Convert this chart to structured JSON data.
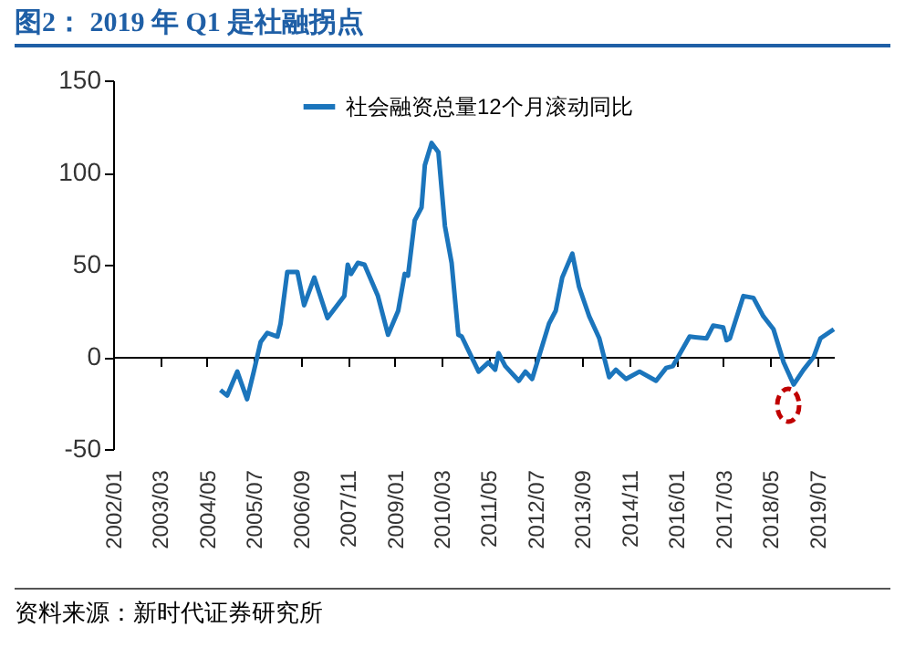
{
  "chart_data": {
    "type": "line",
    "title": "图2： 2019 年 Q1 是社融拐点",
    "x": [
      "2004-09",
      "2004-11",
      "2005-02",
      "2005-05",
      "2005-07",
      "2005-09",
      "2005-11",
      "2006-02",
      "2006-03",
      "2006-05",
      "2006-08",
      "2006-10",
      "2007-01",
      "2007-05",
      "2007-10",
      "2007-11",
      "2007-12",
      "2008-02",
      "2008-04",
      "2008-08",
      "2008-11",
      "2009-02",
      "2009-04",
      "2009-05",
      "2009-07",
      "2009-09",
      "2009-10",
      "2009-12",
      "2010-02",
      "2010-04",
      "2010-06",
      "2010-08",
      "2010-09",
      "2011-02",
      "2011-05",
      "2011-07",
      "2011-08",
      "2011-10",
      "2012-02",
      "2012-04",
      "2012-06",
      "2012-08",
      "2012-11",
      "2013-01",
      "2013-03",
      "2013-06",
      "2013-08",
      "2013-11",
      "2014-02",
      "2014-05",
      "2014-07",
      "2014-10",
      "2015-02",
      "2015-07",
      "2015-10",
      "2015-12",
      "2016-05",
      "2016-10",
      "2016-12",
      "2017-03",
      "2017-04",
      "2017-05",
      "2017-09",
      "2017-12",
      "2018-03",
      "2018-06",
      "2018-09",
      "2018-12",
      "2019-03",
      "2019-06",
      "2019-08",
      "2019-12"
    ],
    "series": [
      {
        "name": "社会融资总量12个月滚动同比",
        "color": "#1b75bc",
        "values": [
          -18,
          -21,
          -8,
          -23,
          -8,
          8,
          13,
          11,
          18,
          46,
          46,
          28,
          43,
          21,
          33,
          50,
          45,
          51,
          50,
          33,
          12,
          25,
          45,
          44,
          74,
          81,
          104,
          116,
          111,
          71,
          51,
          12,
          11,
          -8,
          -3,
          -7,
          2,
          -5,
          -13,
          -8,
          -12,
          0,
          18,
          25,
          43,
          56,
          38,
          22,
          10,
          -11,
          -7,
          -12,
          -8,
          -13,
          -6,
          -5,
          11,
          10,
          17,
          16,
          9,
          10,
          33,
          32,
          22,
          15,
          -3,
          -15,
          -7,
          0,
          10,
          15
        ]
      }
    ],
    "xlim": [
      "2002-01",
      "2019-12"
    ],
    "xticks": [
      {
        "value": "2002-01",
        "label": "2002/01"
      },
      {
        "value": "2003-03",
        "label": "2003/03"
      },
      {
        "value": "2004-05",
        "label": "2004/05"
      },
      {
        "value": "2005-07",
        "label": "2005/07"
      },
      {
        "value": "2006-09",
        "label": "2006/09"
      },
      {
        "value": "2007-11",
        "label": "2007/11"
      },
      {
        "value": "2009-01",
        "label": "2009/01"
      },
      {
        "value": "2010-03",
        "label": "2010/03"
      },
      {
        "value": "2011-05",
        "label": "2011/05"
      },
      {
        "value": "2012-07",
        "label": "2012/07"
      },
      {
        "value": "2013-09",
        "label": "2013/09"
      },
      {
        "value": "2014-11",
        "label": "2014/11"
      },
      {
        "value": "2016-01",
        "label": "2016/01"
      },
      {
        "value": "2017-03",
        "label": "2017/03"
      },
      {
        "value": "2018-05",
        "label": "2018/05"
      },
      {
        "value": "2019-07",
        "label": "2019/07"
      }
    ],
    "ylim": [
      -50,
      150
    ],
    "yticks": [
      -50,
      0,
      50,
      100,
      150
    ],
    "legend": "top",
    "annotations": [
      "资料来源：新时代证券研究所"
    ]
  }
}
